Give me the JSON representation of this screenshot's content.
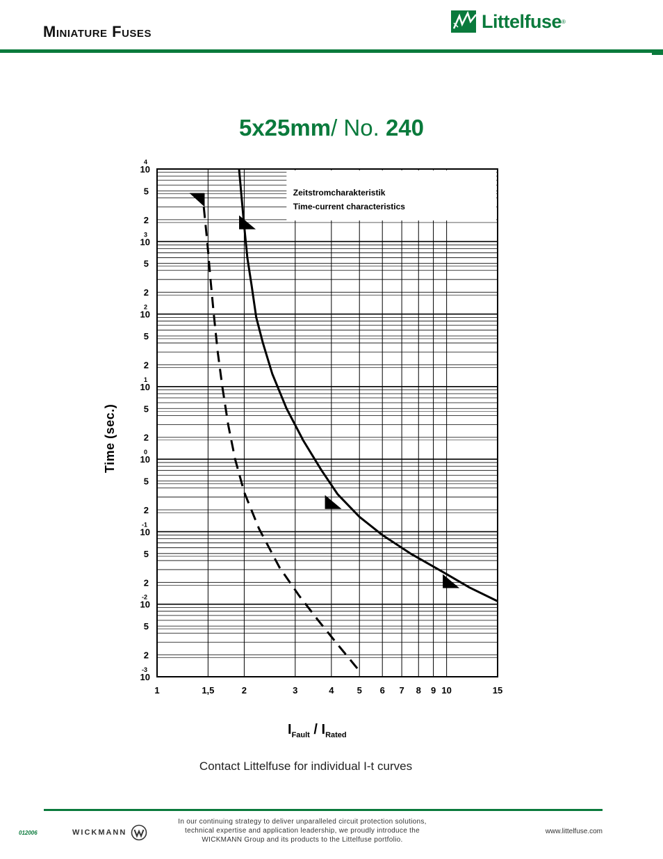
{
  "header": {
    "section_title": "Miniature Fuses",
    "brand": "Littelfuse"
  },
  "product": {
    "size": "5x25mm",
    "no_label": "/ No.",
    "no_value": "240"
  },
  "chart_data": {
    "type": "line",
    "xscale": "log",
    "yscale": "log",
    "xlim": [
      1,
      15
    ],
    "ylim": [
      0.001,
      10000
    ],
    "grid": true,
    "xticks": [
      1,
      1.5,
      2,
      3,
      4,
      5,
      6,
      7,
      8,
      9,
      10,
      15
    ],
    "xtick_labels": [
      "1",
      "1,5",
      "2",
      "3",
      "4",
      "5",
      "6",
      "7",
      "8",
      "9",
      "10",
      "15"
    ],
    "ydecades": [
      {
        "base": "10",
        "exp": "4",
        "value": 10000
      },
      {
        "base": "10",
        "exp": "3",
        "value": 1000
      },
      {
        "base": "10",
        "exp": "2",
        "value": 100
      },
      {
        "base": "10",
        "exp": "1",
        "value": 10
      },
      {
        "base": "10",
        "exp": "0",
        "value": 1
      },
      {
        "base": "10",
        "exp": "-1",
        "value": 0.1
      },
      {
        "base": "10",
        "exp": "-2",
        "value": 0.01
      },
      {
        "base": "10",
        "exp": "-3",
        "value": 0.001
      }
    ],
    "ysub_label_5": "5",
    "ysub_label_2": "2",
    "ylabel": "Time (sec.)",
    "xlabel_main_1": "I",
    "xlabel_sub_1": "Fault",
    "xlabel_sep": " / ",
    "xlabel_main_2": "I",
    "xlabel_sub_2": "Rated",
    "legend_line_1": "Zeitstromcharakteristik",
    "legend_line_2": "Time-current characteristics",
    "series": [
      {
        "style": "solid",
        "x": [
          1.92,
          1.99,
          2.05,
          2.12,
          2.2,
          2.32,
          2.5,
          2.8,
          3.2,
          3.7,
          4.2,
          5.0,
          6.0,
          7.5,
          10.0,
          12.0,
          15.0
        ],
        "y": [
          10000,
          2000,
          600,
          250,
          90,
          40,
          15,
          5,
          1.8,
          0.7,
          0.33,
          0.16,
          0.09,
          0.05,
          0.026,
          0.017,
          0.011
        ]
      },
      {
        "style": "dashed",
        "x": [
          1.45,
          1.49,
          1.53,
          1.57,
          1.62,
          1.68,
          1.76,
          1.86,
          2.0,
          2.25,
          2.65,
          3.1,
          3.6,
          4.2,
          5.0
        ],
        "y": [
          3000,
          1000,
          300,
          100,
          30,
          10,
          3,
          1,
          0.35,
          0.11,
          0.032,
          0.013,
          0.006,
          0.0028,
          0.0012
        ]
      }
    ]
  },
  "note": "Contact Littelfuse for individual I-t curves",
  "footer": {
    "code": "012006",
    "partner": "WICKMANN",
    "blurb": "In our continuing strategy to deliver unparalleled circuit protection solutions, technical expertise and application leadership, we proudly introduce the WICKMANN Group and its products to the Littelfuse portfolio.",
    "url": "www.littelfuse.com"
  },
  "colors": {
    "brand_green": "#0a7a3c"
  }
}
